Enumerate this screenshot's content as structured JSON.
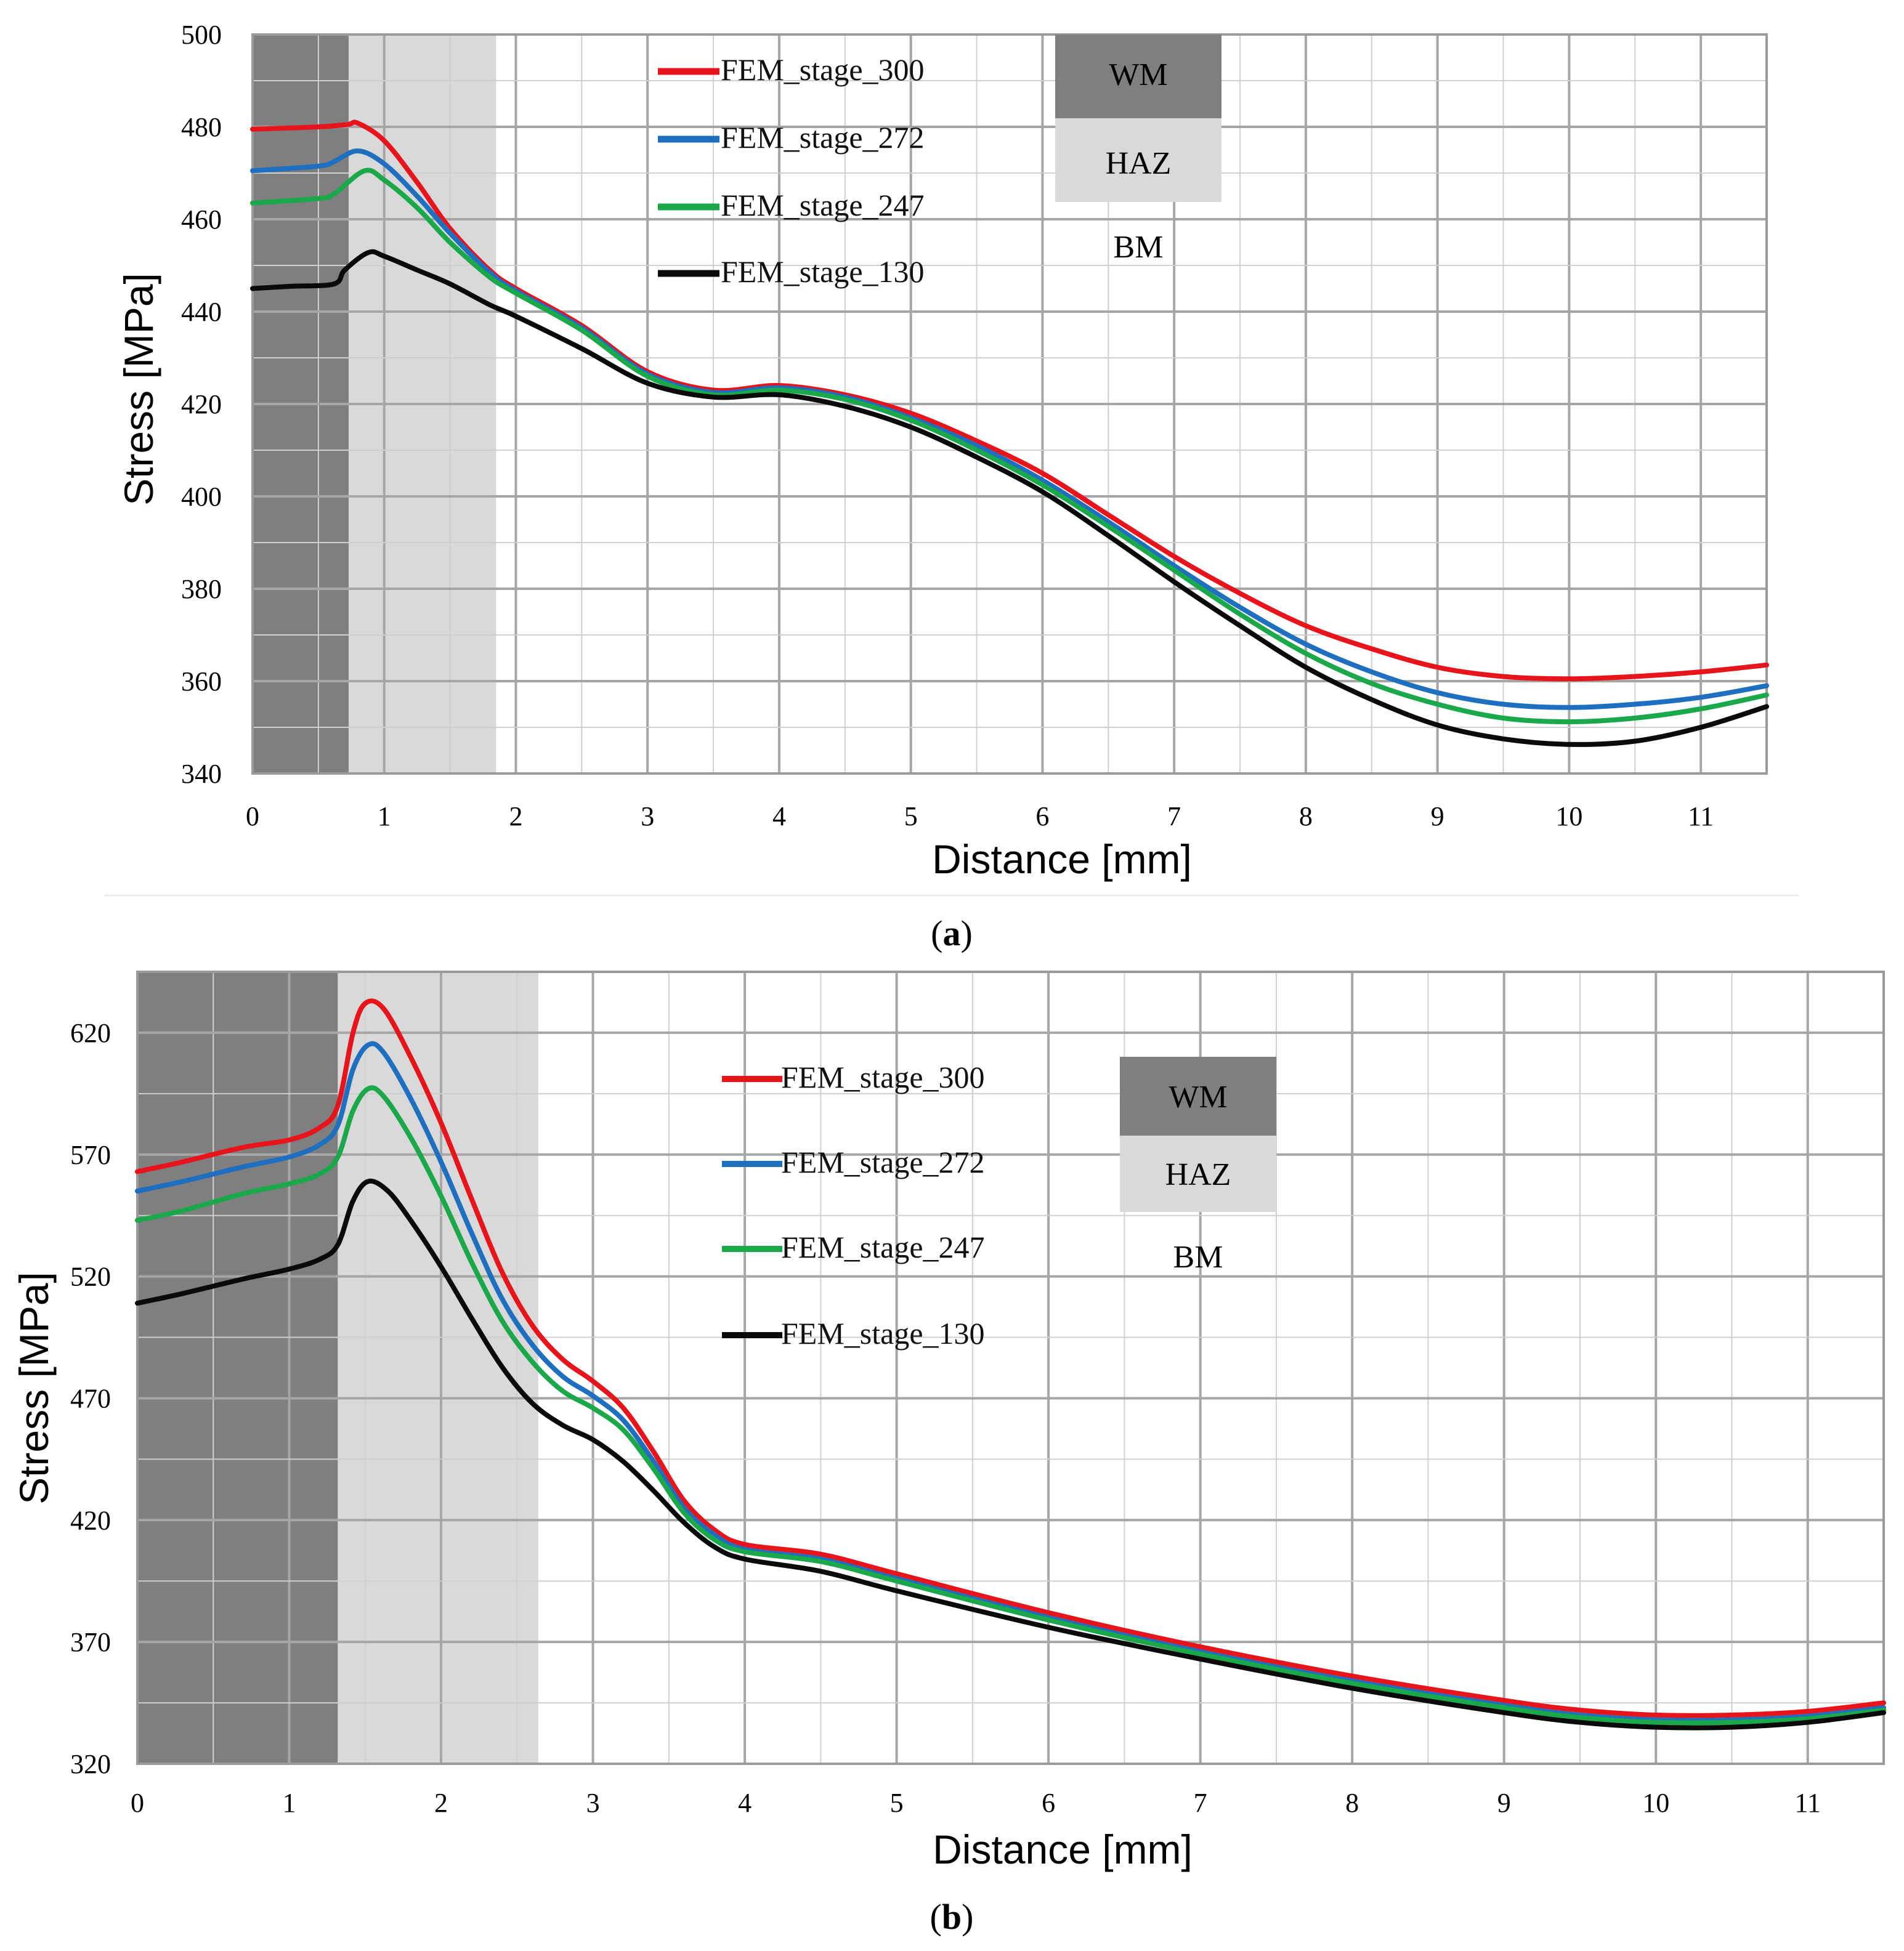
{
  "chart_data": [
    {
      "id": "a",
      "type": "line",
      "caption_letter": "a",
      "xlabel": "Distance [mm]",
      "ylabel": "Stress [MPa]",
      "xlim": [
        0,
        11.5
      ],
      "ylim": [
        340,
        500
      ],
      "xticks": [
        0,
        1,
        2,
        3,
        4,
        5,
        6,
        7,
        8,
        9,
        10,
        11
      ],
      "yticks": [
        340,
        360,
        380,
        400,
        420,
        440,
        460,
        480,
        500
      ],
      "x_minor_step": 0.5,
      "y_minor_step": 10,
      "grid": true,
      "legend_position": "top-center",
      "zones": [
        {
          "name": "WM",
          "from": 0,
          "to": 0.73,
          "color": "#7f7f7f"
        },
        {
          "name": "HAZ",
          "from": 0.73,
          "to": 1.85,
          "color": "#d9d9d9"
        }
      ],
      "zone_legend": [
        "WM",
        "HAZ",
        "BM"
      ],
      "series": [
        {
          "name": "FEM_stage_300",
          "color": "#e8141c",
          "points": [
            [
              0,
              479.5
            ],
            [
              0.5,
              480
            ],
            [
              0.72,
              480.5
            ],
            [
              0.8,
              480.8
            ],
            [
              1.0,
              477
            ],
            [
              1.25,
              468
            ],
            [
              1.5,
              458
            ],
            [
              1.8,
              449
            ],
            [
              2.0,
              445
            ],
            [
              2.5,
              437
            ],
            [
              3.0,
              427
            ],
            [
              3.5,
              423
            ],
            [
              4.0,
              424
            ],
            [
              4.5,
              422
            ],
            [
              5.0,
              418
            ],
            [
              5.5,
              412
            ],
            [
              6.0,
              405
            ],
            [
              6.5,
              396
            ],
            [
              7.0,
              387
            ],
            [
              7.5,
              379
            ],
            [
              8.0,
              372
            ],
            [
              8.5,
              367
            ],
            [
              9.0,
              363
            ],
            [
              9.5,
              361
            ],
            [
              10.0,
              360.5
            ],
            [
              10.5,
              361
            ],
            [
              11.0,
              362
            ],
            [
              11.5,
              363.5
            ]
          ]
        },
        {
          "name": "FEM_stage_272",
          "color": "#1f6fc0",
          "points": [
            [
              0,
              470.5
            ],
            [
              0.5,
              471.5
            ],
            [
              0.62,
              472.5
            ],
            [
              0.8,
              474.8
            ],
            [
              1.0,
              472
            ],
            [
              1.25,
              465
            ],
            [
              1.5,
              457
            ],
            [
              1.8,
              448.5
            ],
            [
              2.0,
              444.5
            ],
            [
              2.5,
              436.5
            ],
            [
              3.0,
              426.5
            ],
            [
              3.5,
              422.5
            ],
            [
              4.0,
              423.5
            ],
            [
              4.5,
              421.5
            ],
            [
              5.0,
              417
            ],
            [
              5.5,
              411
            ],
            [
              6.0,
              403.5
            ],
            [
              6.5,
              394.5
            ],
            [
              7.0,
              385
            ],
            [
              7.5,
              376
            ],
            [
              8.0,
              368
            ],
            [
              8.5,
              362
            ],
            [
              9.0,
              357.5
            ],
            [
              9.5,
              355
            ],
            [
              10.0,
              354.3
            ],
            [
              10.5,
              355
            ],
            [
              11.0,
              356.5
            ],
            [
              11.5,
              359
            ]
          ]
        },
        {
          "name": "FEM_stage_247",
          "color": "#1aa84a",
          "points": [
            [
              0,
              463.5
            ],
            [
              0.5,
              464.5
            ],
            [
              0.62,
              465.5
            ],
            [
              0.85,
              470.5
            ],
            [
              1.0,
              468.5
            ],
            [
              1.25,
              462.5
            ],
            [
              1.5,
              455
            ],
            [
              1.8,
              447.5
            ],
            [
              2.0,
              444
            ],
            [
              2.5,
              436
            ],
            [
              3.0,
              426
            ],
            [
              3.5,
              422
            ],
            [
              4.0,
              423
            ],
            [
              4.5,
              421
            ],
            [
              5.0,
              416.5
            ],
            [
              5.5,
              410
            ],
            [
              6.0,
              402.5
            ],
            [
              6.5,
              393.5
            ],
            [
              7.0,
              384
            ],
            [
              7.5,
              374.5
            ],
            [
              8.0,
              366
            ],
            [
              8.5,
              359.5
            ],
            [
              9.0,
              355
            ],
            [
              9.5,
              352
            ],
            [
              10.0,
              351.2
            ],
            [
              10.5,
              352
            ],
            [
              11.0,
              354
            ],
            [
              11.5,
              357
            ]
          ]
        },
        {
          "name": "FEM_stage_130",
          "color": "#0a0a0a",
          "points": [
            [
              0,
              445
            ],
            [
              0.3,
              445.5
            ],
            [
              0.62,
              446
            ],
            [
              0.7,
              449
            ],
            [
              0.88,
              452.8
            ],
            [
              1.0,
              452
            ],
            [
              1.25,
              449
            ],
            [
              1.5,
              446
            ],
            [
              1.8,
              441.5
            ],
            [
              2.0,
              439
            ],
            [
              2.5,
              432
            ],
            [
              3.0,
              424.5
            ],
            [
              3.5,
              421.5
            ],
            [
              4.0,
              422
            ],
            [
              4.5,
              419.5
            ],
            [
              5.0,
              415
            ],
            [
              5.5,
              408.5
            ],
            [
              6.0,
              401
            ],
            [
              6.5,
              391.5
            ],
            [
              7.0,
              381.5
            ],
            [
              7.5,
              372
            ],
            [
              8.0,
              363
            ],
            [
              8.5,
              356
            ],
            [
              9.0,
              350.5
            ],
            [
              9.5,
              347.5
            ],
            [
              10.0,
              346.3
            ],
            [
              10.5,
              347
            ],
            [
              11.0,
              350
            ],
            [
              11.5,
              354.5
            ]
          ]
        }
      ]
    },
    {
      "id": "b",
      "type": "line",
      "caption_letter": "b",
      "xlabel": "Distance [mm]",
      "ylabel": "Stress [MPa]",
      "xlim": [
        0,
        11.5
      ],
      "ylim": [
        320,
        645
      ],
      "xticks": [
        0,
        1,
        2,
        3,
        4,
        5,
        6,
        7,
        8,
        9,
        10,
        11
      ],
      "yticks": [
        320,
        370,
        420,
        470,
        520,
        570,
        620
      ],
      "x_minor_step": 0.5,
      "y_minor_step": 25,
      "grid": true,
      "legend_position": "top-center",
      "zones": [
        {
          "name": "WM",
          "from": 0,
          "to": 1.32,
          "color": "#7f7f7f"
        },
        {
          "name": "HAZ",
          "from": 1.32,
          "to": 2.64,
          "color": "#d9d9d9"
        }
      ],
      "zone_legend": [
        "WM",
        "HAZ",
        "BM"
      ],
      "series": [
        {
          "name": "FEM_stage_300",
          "color": "#e8141c",
          "points": [
            [
              0,
              563
            ],
            [
              0.3,
              567
            ],
            [
              0.7,
              573
            ],
            [
              1.0,
              576
            ],
            [
              1.2,
              581
            ],
            [
              1.32,
              590
            ],
            [
              1.42,
              620
            ],
            [
              1.5,
              632
            ],
            [
              1.62,
              630
            ],
            [
              1.8,
              610
            ],
            [
              2.0,
              583
            ],
            [
              2.2,
              552
            ],
            [
              2.4,
              522
            ],
            [
              2.6,
              500
            ],
            [
              2.8,
              486
            ],
            [
              3.0,
              477
            ],
            [
              3.2,
              466
            ],
            [
              3.4,
              448
            ],
            [
              3.6,
              428
            ],
            [
              3.8,
              416
            ],
            [
              4.0,
              410
            ],
            [
              4.5,
              406
            ],
            [
              5.0,
              398
            ],
            [
              6.0,
              382
            ],
            [
              7.0,
              368
            ],
            [
              8.0,
              356
            ],
            [
              9.0,
              346
            ],
            [
              9.5,
              342
            ],
            [
              10.0,
              340
            ],
            [
              10.5,
              340
            ],
            [
              11.0,
              341.5
            ],
            [
              11.5,
              345
            ]
          ]
        },
        {
          "name": "FEM_stage_272",
          "color": "#1f6fc0",
          "points": [
            [
              0,
              555
            ],
            [
              0.3,
              559
            ],
            [
              0.7,
              565
            ],
            [
              1.0,
              569
            ],
            [
              1.2,
              574
            ],
            [
              1.32,
              582
            ],
            [
              1.42,
              605
            ],
            [
              1.52,
              615
            ],
            [
              1.62,
              612
            ],
            [
              1.8,
              593
            ],
            [
              2.0,
              567
            ],
            [
              2.2,
              538
            ],
            [
              2.4,
              511
            ],
            [
              2.6,
              492
            ],
            [
              2.8,
              479
            ],
            [
              3.0,
              471
            ],
            [
              3.2,
              461
            ],
            [
              3.4,
              444
            ],
            [
              3.6,
              425
            ],
            [
              3.8,
              414
            ],
            [
              4.0,
              408
            ],
            [
              4.5,
              404
            ],
            [
              5.0,
              396
            ],
            [
              6.0,
              380
            ],
            [
              7.0,
              366
            ],
            [
              8.0,
              354
            ],
            [
              9.0,
              344
            ],
            [
              9.5,
              340
            ],
            [
              10.0,
              338
            ],
            [
              10.5,
              338
            ],
            [
              11.0,
              339.5
            ],
            [
              11.5,
              343
            ]
          ]
        },
        {
          "name": "FEM_stage_247",
          "color": "#1aa84a",
          "points": [
            [
              0,
              543
            ],
            [
              0.3,
              547
            ],
            [
              0.7,
              554
            ],
            [
              1.0,
              558
            ],
            [
              1.2,
              562
            ],
            [
              1.32,
              569
            ],
            [
              1.42,
              588
            ],
            [
              1.52,
              597
            ],
            [
              1.62,
              594
            ],
            [
              1.8,
              577
            ],
            [
              2.0,
              553
            ],
            [
              2.2,
              526
            ],
            [
              2.4,
              502
            ],
            [
              2.6,
              485
            ],
            [
              2.8,
              473
            ],
            [
              3.0,
              466
            ],
            [
              3.2,
              457
            ],
            [
              3.4,
              441
            ],
            [
              3.6,
              423
            ],
            [
              3.8,
              412
            ],
            [
              4.0,
              407
            ],
            [
              4.5,
              403
            ],
            [
              5.0,
              395
            ],
            [
              6.0,
              379
            ],
            [
              7.0,
              365
            ],
            [
              8.0,
              353
            ],
            [
              9.0,
              343
            ],
            [
              9.5,
              339
            ],
            [
              10.0,
              337
            ],
            [
              10.5,
              337
            ],
            [
              11.0,
              338.5
            ],
            [
              11.5,
              342
            ]
          ]
        },
        {
          "name": "FEM_stage_130",
          "color": "#0a0a0a",
          "points": [
            [
              0,
              509
            ],
            [
              0.3,
              513
            ],
            [
              0.7,
              519
            ],
            [
              1.0,
              523
            ],
            [
              1.2,
              527
            ],
            [
              1.32,
              533
            ],
            [
              1.42,
              551
            ],
            [
              1.52,
              559
            ],
            [
              1.65,
              555
            ],
            [
              1.8,
              543
            ],
            [
              2.0,
              524
            ],
            [
              2.2,
              503
            ],
            [
              2.4,
              483
            ],
            [
              2.6,
              468
            ],
            [
              2.8,
              459
            ],
            [
              3.0,
              453
            ],
            [
              3.2,
              444
            ],
            [
              3.4,
              432
            ],
            [
              3.6,
              419
            ],
            [
              3.8,
              409
            ],
            [
              4.0,
              404
            ],
            [
              4.5,
              399
            ],
            [
              5.0,
              391
            ],
            [
              6.0,
              376
            ],
            [
              7.0,
              363
            ],
            [
              8.0,
              351
            ],
            [
              9.0,
              341
            ],
            [
              9.5,
              337
            ],
            [
              10.0,
              335
            ],
            [
              10.5,
              335
            ],
            [
              11.0,
              337
            ],
            [
              11.5,
              341
            ]
          ]
        }
      ]
    }
  ]
}
